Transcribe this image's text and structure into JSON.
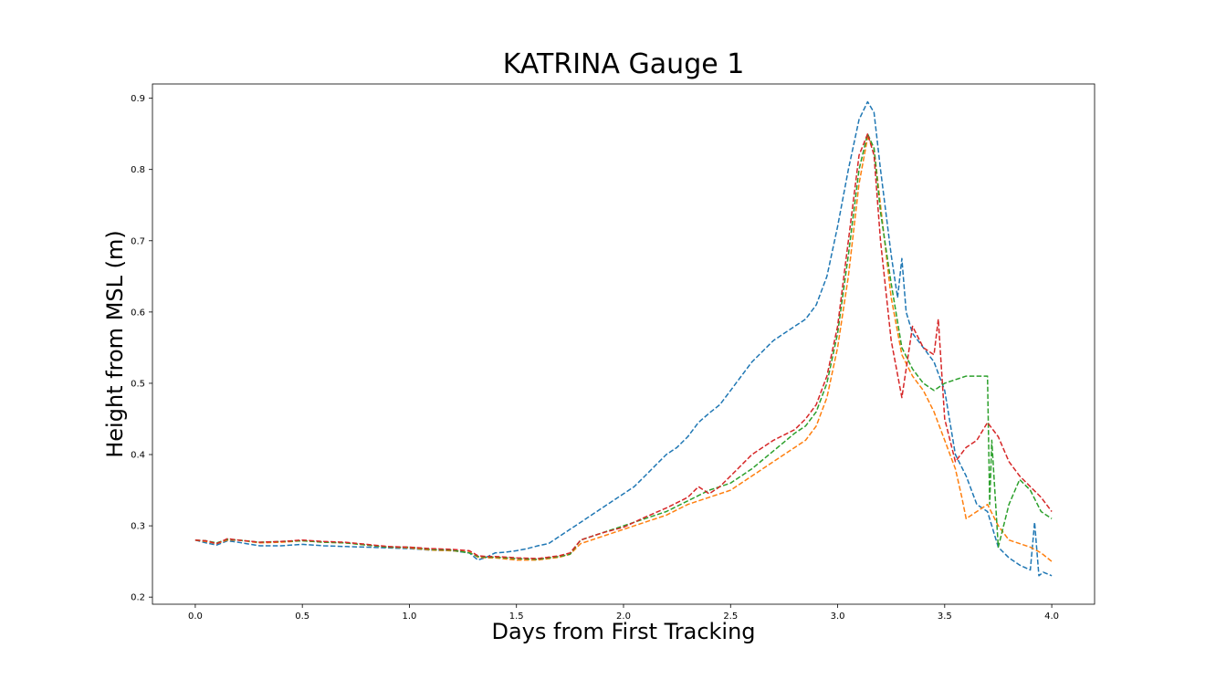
{
  "chart_data": {
    "type": "line",
    "title": "KATRINA Gauge 1",
    "xlabel": "Days from First Tracking",
    "ylabel": "Height from MSL (m)",
    "xlim": [
      -0.2,
      4.2
    ],
    "ylim": [
      0.19,
      0.92
    ],
    "xticks": [
      "0.0",
      "0.5",
      "1.0",
      "1.5",
      "2.0",
      "2.5",
      "3.0",
      "3.5",
      "4.0"
    ],
    "yticks": [
      "0.2",
      "0.3",
      "0.4",
      "0.5",
      "0.6",
      "0.7",
      "0.8",
      "0.9"
    ],
    "grid": false,
    "line_style": "dashed",
    "series": [
      {
        "color": "#1f77b4",
        "x": [
          0.0,
          0.05,
          0.1,
          0.15,
          0.2,
          0.3,
          0.4,
          0.5,
          0.6,
          0.7,
          0.8,
          0.9,
          1.0,
          1.1,
          1.2,
          1.28,
          1.32,
          1.36,
          1.4,
          1.45,
          1.5,
          1.55,
          1.6,
          1.65,
          1.7,
          1.8,
          1.9,
          2.0,
          2.05,
          2.1,
          2.15,
          2.2,
          2.25,
          2.3,
          2.35,
          2.4,
          2.45,
          2.5,
          2.55,
          2.6,
          2.7,
          2.8,
          2.85,
          2.9,
          2.95,
          3.0,
          3.05,
          3.1,
          3.14,
          3.17,
          3.2,
          3.25,
          3.28,
          3.3,
          3.32,
          3.35,
          3.4,
          3.45,
          3.5,
          3.55,
          3.6,
          3.65,
          3.7,
          3.75,
          3.8,
          3.85,
          3.9,
          3.92,
          3.94,
          3.96,
          4.0
        ],
        "y": [
          0.28,
          0.276,
          0.273,
          0.279,
          0.277,
          0.272,
          0.272,
          0.274,
          0.272,
          0.271,
          0.27,
          0.269,
          0.268,
          0.266,
          0.265,
          0.262,
          0.252,
          0.256,
          0.262,
          0.263,
          0.265,
          0.268,
          0.272,
          0.275,
          0.285,
          0.305,
          0.325,
          0.345,
          0.355,
          0.37,
          0.385,
          0.4,
          0.41,
          0.425,
          0.445,
          0.458,
          0.47,
          0.49,
          0.51,
          0.53,
          0.56,
          0.58,
          0.59,
          0.61,
          0.65,
          0.72,
          0.8,
          0.87,
          0.895,
          0.88,
          0.8,
          0.68,
          0.62,
          0.675,
          0.6,
          0.57,
          0.55,
          0.53,
          0.49,
          0.4,
          0.37,
          0.33,
          0.32,
          0.27,
          0.255,
          0.245,
          0.238,
          0.305,
          0.23,
          0.235,
          0.23
        ]
      },
      {
        "color": "#ff7f0e",
        "x": [
          0.0,
          0.05,
          0.1,
          0.15,
          0.2,
          0.3,
          0.4,
          0.5,
          0.6,
          0.7,
          0.8,
          0.9,
          1.0,
          1.1,
          1.2,
          1.28,
          1.32,
          1.36,
          1.4,
          1.5,
          1.6,
          1.7,
          1.75,
          1.8,
          1.9,
          2.0,
          2.1,
          2.2,
          2.3,
          2.4,
          2.5,
          2.6,
          2.7,
          2.8,
          2.85,
          2.9,
          2.95,
          3.0,
          3.05,
          3.1,
          3.14,
          3.17,
          3.2,
          3.25,
          3.3,
          3.35,
          3.4,
          3.45,
          3.5,
          3.55,
          3.58,
          3.6,
          3.65,
          3.7,
          3.75,
          3.8,
          3.85,
          3.9,
          3.95,
          4.0
        ],
        "y": [
          0.28,
          0.278,
          0.275,
          0.28,
          0.28,
          0.276,
          0.277,
          0.279,
          0.277,
          0.276,
          0.273,
          0.27,
          0.269,
          0.266,
          0.265,
          0.263,
          0.256,
          0.255,
          0.255,
          0.252,
          0.252,
          0.256,
          0.26,
          0.275,
          0.285,
          0.295,
          0.305,
          0.315,
          0.33,
          0.34,
          0.35,
          0.37,
          0.39,
          0.41,
          0.42,
          0.44,
          0.48,
          0.55,
          0.65,
          0.78,
          0.845,
          0.83,
          0.75,
          0.62,
          0.54,
          0.51,
          0.49,
          0.46,
          0.42,
          0.38,
          0.34,
          0.31,
          0.32,
          0.33,
          0.3,
          0.28,
          0.275,
          0.27,
          0.262,
          0.25
        ]
      },
      {
        "color": "#2ca02c",
        "x": [
          0.0,
          0.05,
          0.1,
          0.15,
          0.2,
          0.3,
          0.4,
          0.5,
          0.6,
          0.7,
          0.8,
          0.9,
          1.0,
          1.1,
          1.2,
          1.28,
          1.32,
          1.36,
          1.4,
          1.5,
          1.6,
          1.7,
          1.75,
          1.8,
          1.9,
          2.0,
          2.1,
          2.2,
          2.3,
          2.4,
          2.5,
          2.6,
          2.7,
          2.8,
          2.85,
          2.9,
          2.95,
          3.0,
          3.05,
          3.1,
          3.14,
          3.17,
          3.2,
          3.25,
          3.3,
          3.35,
          3.4,
          3.45,
          3.5,
          3.55,
          3.6,
          3.65,
          3.7,
          3.71,
          3.72,
          3.75,
          3.8,
          3.85,
          3.9,
          3.95,
          4.0
        ],
        "y": [
          0.28,
          0.279,
          0.276,
          0.281,
          0.28,
          0.277,
          0.278,
          0.279,
          0.277,
          0.276,
          0.273,
          0.27,
          0.27,
          0.267,
          0.266,
          0.262,
          0.257,
          0.256,
          0.256,
          0.254,
          0.253,
          0.257,
          0.26,
          0.28,
          0.29,
          0.3,
          0.31,
          0.32,
          0.335,
          0.35,
          0.36,
          0.38,
          0.405,
          0.43,
          0.44,
          0.46,
          0.5,
          0.57,
          0.68,
          0.8,
          0.85,
          0.83,
          0.74,
          0.64,
          0.55,
          0.52,
          0.5,
          0.49,
          0.5,
          0.505,
          0.51,
          0.51,
          0.51,
          0.33,
          0.42,
          0.27,
          0.33,
          0.365,
          0.35,
          0.32,
          0.31
        ]
      },
      {
        "color": "#d62728",
        "x": [
          0.0,
          0.05,
          0.1,
          0.15,
          0.2,
          0.3,
          0.4,
          0.5,
          0.6,
          0.7,
          0.8,
          0.9,
          1.0,
          1.1,
          1.2,
          1.28,
          1.32,
          1.36,
          1.4,
          1.5,
          1.6,
          1.7,
          1.75,
          1.8,
          1.9,
          2.0,
          2.1,
          2.2,
          2.3,
          2.35,
          2.4,
          2.45,
          2.5,
          2.6,
          2.7,
          2.8,
          2.85,
          2.9,
          2.95,
          3.0,
          3.05,
          3.1,
          3.14,
          3.17,
          3.2,
          3.25,
          3.3,
          3.35,
          3.4,
          3.45,
          3.47,
          3.5,
          3.55,
          3.6,
          3.65,
          3.7,
          3.75,
          3.8,
          3.85,
          3.9,
          3.95,
          4.0
        ],
        "y": [
          0.28,
          0.279,
          0.275,
          0.282,
          0.28,
          0.277,
          0.278,
          0.28,
          0.278,
          0.277,
          0.274,
          0.271,
          0.27,
          0.268,
          0.267,
          0.265,
          0.258,
          0.257,
          0.257,
          0.255,
          0.254,
          0.258,
          0.262,
          0.28,
          0.29,
          0.298,
          0.312,
          0.325,
          0.34,
          0.355,
          0.345,
          0.355,
          0.37,
          0.4,
          0.42,
          0.435,
          0.45,
          0.47,
          0.51,
          0.58,
          0.7,
          0.82,
          0.85,
          0.82,
          0.7,
          0.56,
          0.48,
          0.58,
          0.55,
          0.54,
          0.59,
          0.45,
          0.39,
          0.41,
          0.42,
          0.445,
          0.425,
          0.39,
          0.37,
          0.355,
          0.34,
          0.32
        ]
      }
    ]
  }
}
